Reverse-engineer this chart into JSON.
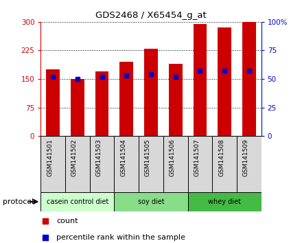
{
  "title": "GDS2468 / X65454_g_at",
  "samples": [
    "GSM141501",
    "GSM141502",
    "GSM141503",
    "GSM141504",
    "GSM141505",
    "GSM141506",
    "GSM141507",
    "GSM141508",
    "GSM141509"
  ],
  "counts": [
    175,
    150,
    170,
    195,
    230,
    190,
    295,
    285,
    300
  ],
  "percentiles": [
    52,
    50,
    52,
    53,
    54,
    52,
    57,
    57,
    57
  ],
  "groups": [
    {
      "label": "casein control diet",
      "start": 0,
      "end": 3,
      "color": "#ccffcc"
    },
    {
      "label": "soy diet",
      "start": 3,
      "end": 6,
      "color": "#88dd88"
    },
    {
      "label": "whey diet",
      "start": 6,
      "end": 9,
      "color": "#44bb44"
    }
  ],
  "bar_color": "#cc0000",
  "percentile_color": "#0000cc",
  "left_axis_color": "#cc0000",
  "right_axis_color": "#0000cc",
  "ylim_left": [
    0,
    300
  ],
  "ylim_right": [
    0,
    100
  ],
  "yticks_left": [
    0,
    75,
    150,
    225,
    300
  ],
  "yticks_right": [
    0,
    25,
    50,
    75,
    100
  ],
  "ytick_labels_right": [
    "0",
    "25",
    "50",
    "75",
    "100%"
  ],
  "tick_bg_color": "#d8d8d8",
  "bar_width": 0.55,
  "protocol_label": "protocol",
  "legend_count_label": "count",
  "legend_pct_label": "percentile rank within the sample"
}
